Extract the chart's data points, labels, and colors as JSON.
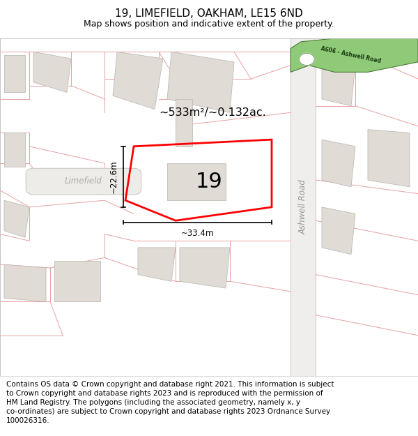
{
  "title": "19, LIMEFIELD, OAKHAM, LE15 6ND",
  "subtitle": "Map shows position and indicative extent of the property.",
  "footer": "Contains OS data © Crown copyright and database right 2021. This information is subject\nto Crown copyright and database rights 2023 and is reproduced with the permission of\nHM Land Registry. The polygons (including the associated geometry, namely x, y\nco-ordinates) are subject to Crown copyright and database rights 2023 Ordnance Survey\n100026316.",
  "map_bg": "#f7f5f3",
  "building_color": "#e0dbd5",
  "building_outline": "#c0bbb5",
  "highlight_color": "#ff0000",
  "green_road_color": "#8eca78",
  "green_road_outline": "#4a7a38",
  "pink_line_color": "#e8a0a0",
  "gray_road_color": "#e8e4e0",
  "gray_road_outline": "#c8c4c0",
  "area_text": "~533m²/~0.132ac.",
  "property_label": "19",
  "dim_h": "~22.6m",
  "dim_w": "~33.4m",
  "street_label_limefield": "Limefield",
  "street_label_ashwell": "Ashwell Road",
  "road_sign_text": "A606 - Ashwell Road",
  "title_fontsize": 11,
  "subtitle_fontsize": 9,
  "footer_fontsize": 7.5
}
